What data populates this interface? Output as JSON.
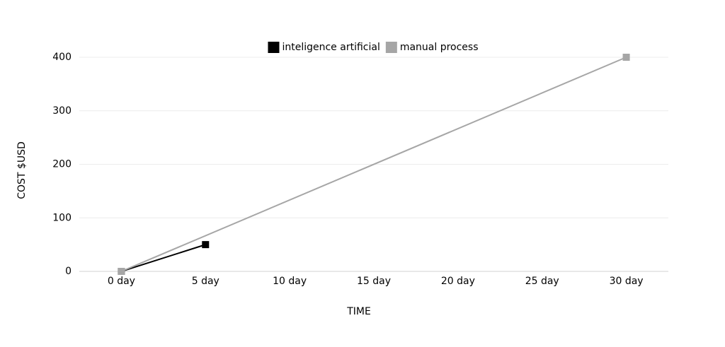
{
  "chart_data": {
    "type": "line",
    "x_label": "TIME",
    "y_label": "COST $USD",
    "series": [
      {
        "name": "inteligence artificial",
        "color": "#000000",
        "x": [
          0,
          5
        ],
        "values": [
          0,
          50
        ]
      },
      {
        "name": "manual process",
        "color": "#a6a6a6",
        "x": [
          0,
          30
        ],
        "values": [
          0,
          400
        ]
      }
    ],
    "xlim": [
      -2.5,
      32.5
    ],
    "xticks": [
      {
        "value": 0,
        "label": "0 day"
      },
      {
        "value": 5,
        "label": "5 day"
      },
      {
        "value": 10,
        "label": "10 day"
      },
      {
        "value": 15,
        "label": "15 day"
      },
      {
        "value": 20,
        "label": "20 day"
      },
      {
        "value": 25,
        "label": "25 day"
      },
      {
        "value": 30,
        "label": "30 day"
      }
    ],
    "ylim": [
      0,
      400
    ],
    "yticks": [
      0,
      100,
      200,
      300,
      400
    ],
    "grid": true,
    "legend": "top"
  }
}
